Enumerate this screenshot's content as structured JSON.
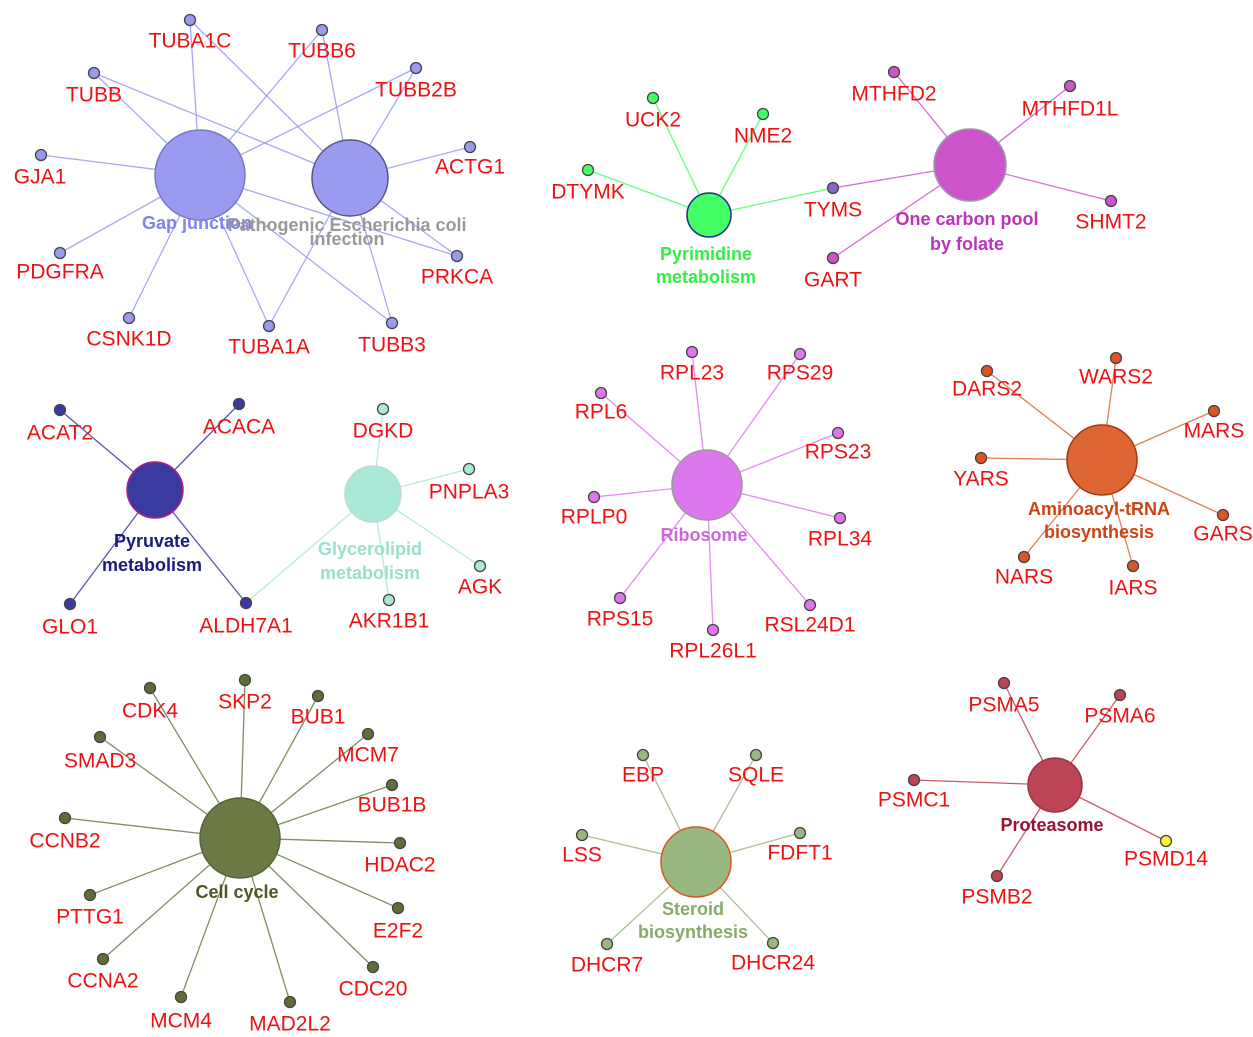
{
  "clusters": [
    {
      "hubs": [
        {
          "lines": [
            "Gap junction"
          ]
        },
        {
          "lines": [
            "Pathogenic Escherichia coli",
            "infection"
          ]
        }
      ],
      "genes": [
        "TUBA1C",
        "TUBB6",
        "TUBB",
        "TUBB2B",
        "GJA1",
        "ACTG1",
        "PDGFRA",
        "PRKCA",
        "CSNK1D",
        "TUBA1A",
        "TUBB3"
      ]
    },
    {
      "hubs": [
        {
          "lines": [
            "Pyrimidine",
            "metabolism"
          ]
        },
        {
          "lines": [
            "One carbon pool",
            "by folate"
          ]
        }
      ],
      "genes": [
        "UCK2",
        "NME2",
        "DTYMK",
        "TYMS",
        "MTHFD2",
        "MTHFD1L",
        "SHMT2",
        "GART"
      ]
    },
    {
      "hubs": [
        {
          "lines": [
            "Pyruvate",
            "metabolism"
          ]
        },
        {
          "lines": [
            "Glycerolipid",
            "metabolism"
          ]
        }
      ],
      "genes": [
        "ACAT2",
        "ACACA",
        "GLO1",
        "ALDH7A1",
        "DGKD",
        "PNPLA3",
        "AGK",
        "AKR1B1"
      ]
    },
    {
      "hubs": [
        {
          "lines": [
            "Ribosome"
          ]
        }
      ],
      "genes": [
        "RPL23",
        "RPS29",
        "RPL6",
        "RPS23",
        "RPLP0",
        "RPL34",
        "RPS15",
        "RSL24D1",
        "RPL26L1"
      ]
    },
    {
      "hubs": [
        {
          "lines": [
            "Aminoacyl-tRNA",
            "biosynthesis"
          ]
        }
      ],
      "genes": [
        "DARS2",
        "WARS2",
        "MARS",
        "YARS",
        "GARS",
        "NARS",
        "IARS"
      ]
    },
    {
      "hubs": [
        {
          "lines": [
            "Cell cycle"
          ]
        }
      ],
      "genes": [
        "CDK4",
        "SKP2",
        "BUB1",
        "SMAD3",
        "MCM7",
        "CCNB2",
        "BUB1B",
        "HDAC2",
        "PTTG1",
        "E2F2",
        "CCNA2",
        "CDC20",
        "MCM4",
        "MAD2L2"
      ]
    },
    {
      "hubs": [
        {
          "lines": [
            "Steroid",
            "biosynthesis"
          ]
        }
      ],
      "genes": [
        "EBP",
        "SQLE",
        "LSS",
        "FDFT1",
        "DHCR7",
        "DHCR24"
      ]
    },
    {
      "hubs": [
        {
          "lines": [
            "Proteasome"
          ]
        }
      ],
      "genes": [
        "PSMA5",
        "PSMA6",
        "PSMC1",
        "PSMD14",
        "PSMB2"
      ]
    }
  ]
}
